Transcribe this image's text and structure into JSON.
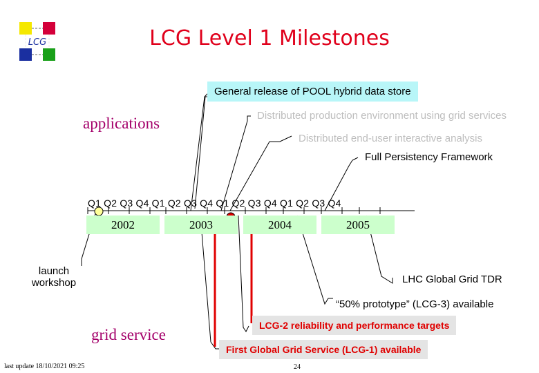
{
  "logo": {
    "text": "LCG"
  },
  "title": "LCG Level 1 Milestones",
  "sections": {
    "applications": "applications",
    "grid_service": "grid service"
  },
  "timeline": {
    "quarter_labels": "Q1 Q2 Q3 Q4 Q1 Q2 Q3 Q4 Q1 Q2 Q3 Q4 Q1 Q2 Q3 Q4",
    "years": [
      "2002",
      "2003",
      "2004",
      "2005"
    ],
    "marker_colors": {
      "start": "#ffff99",
      "current": "#e00000"
    }
  },
  "milestones": {
    "pool": "General release of POOL hybrid data store",
    "distributed_production": "Distributed production environment using grid services",
    "distributed_analysis": "Distributed end-user interactive analysis",
    "persistency": "Full Persistency Framework",
    "launch": "launch workshop",
    "lhc_tdr": "LHC Global Grid TDR",
    "prototype": "“50% prototype” (LCG-3) available",
    "lcg2": "LCG-2 reliability and performance targets",
    "lcg1": "First Global Grid Service (LCG-1) available"
  },
  "footer": {
    "last_update": "last update 18/10/2021 09:25",
    "page_number": "24"
  },
  "colors": {
    "title": "#e0001b",
    "pool_highlight": "#b8f6f8",
    "lcg_highlight": "#e4e4e4",
    "year_box": "#ccffcc",
    "red_bars": "#e00000"
  }
}
